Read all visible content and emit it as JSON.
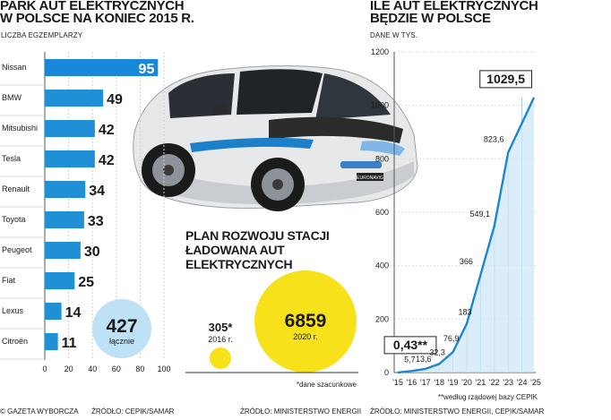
{
  "left_chart": {
    "title_line1": "PARK AUT ELEKTRYCZNYCH",
    "title_line2": "W POLSCE NA KONIEC 2015 R.",
    "subtitle": "LICZBA EGZEMPLARZY",
    "total_value": "427",
    "total_label": "łącznie"
  },
  "middle": {
    "title_line1": "PLAN ROZWOJU STACJI",
    "title_line2": "ŁADOWANA AUT",
    "title_line3": "ELEKTRYCZNYCH",
    "footnote": "*dane szacunkowe",
    "car_badge": "EURONAVIG"
  },
  "right_chart": {
    "title_line1": "ILE AUT ELEKTRYCZNYCH",
    "title_line2": "BĘDZIE W POLSCE",
    "subtitle": "DANE W TYS.",
    "footnote": "**według rządowej bazy CEPIK"
  },
  "footer": {
    "brand": "© GAZETA WYBORCZA",
    "source_left": "ŹRÓDŁO: CEPIK/SAMAR",
    "source_middle": "ŹRÓDŁO: MINISTERSTWO ENERGII",
    "source_right": "ŹRÓDŁO: MINISTERSTWO ENERGII, CEPIK/SAMAR"
  },
  "colors": {
    "bar_blue": "#1f8fd6",
    "first_bar_blue": "#1a88d8",
    "total_circle": "#bfe1f6",
    "yellow": "#f7e11b",
    "line_blue": "#1c86cf",
    "area_fill": "#cfe7f7"
  },
  "chart_data": [
    {
      "type": "bar",
      "orientation": "horizontal",
      "title": "PARK AUT ELEKTRYCZNYCH W POLSCE NA KONIEC 2015 R.",
      "subtitle": "LICZBA EGZEMPLARZY",
      "categories": [
        "Nissan",
        "BMW",
        "Mitsubishi",
        "Tesla",
        "Renault",
        "Toyota",
        "Peugeot",
        "Fiat",
        "Lexus",
        "Citroën"
      ],
      "values": [
        95,
        49,
        42,
        42,
        34,
        33,
        30,
        25,
        14,
        11
      ],
      "xlim": [
        0,
        100
      ],
      "xticks": [
        0,
        20,
        40,
        60,
        80,
        100
      ],
      "annotation": "427 łącznie"
    },
    {
      "type": "bubble",
      "title": "PLAN ROZWOJU STACJI ŁADOWANA AUT ELEKTRYCZNYCH",
      "points": [
        {
          "value": 305,
          "value_label": "305*",
          "year_label": "2016 r."
        },
        {
          "value": 6859,
          "value_label": "6859",
          "year_label": "2020 r."
        }
      ]
    },
    {
      "type": "area",
      "title": "ILE AUT ELEKTRYCZNYCH BĘDZIE W POLSCE",
      "subtitle": "DANE W TYS.",
      "x": [
        "'15",
        "'16",
        "'17",
        "'18",
        "'19",
        "'20",
        "'21",
        "'22",
        "'23",
        "'24",
        "'25"
      ],
      "values": [
        0.43,
        5.7,
        13.6,
        32.3,
        76.9,
        183,
        366,
        549.1,
        823.6,
        1029.5,
        1029.5
      ],
      "ylim": [
        0,
        1200
      ],
      "yticks": [
        0,
        200,
        400,
        600,
        800,
        1000,
        1200
      ],
      "labels": [
        {
          "index": 0,
          "text": "0,43**",
          "boxed": true
        },
        {
          "index": 1,
          "text": "5,7"
        },
        {
          "index": 2,
          "text": "13,6"
        },
        {
          "index": 3,
          "text": "32,3"
        },
        {
          "index": 4,
          "text": "76,9"
        },
        {
          "index": 5,
          "text": "183"
        },
        {
          "index": 6,
          "text": "366"
        },
        {
          "index": 7,
          "text": "549,1"
        },
        {
          "index": 8,
          "text": "823,6"
        },
        {
          "index": 9,
          "text": "1029,5",
          "boxed": true
        }
      ]
    }
  ]
}
